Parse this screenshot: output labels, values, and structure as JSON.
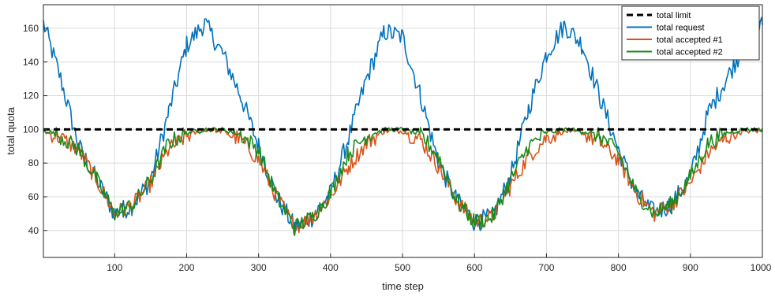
{
  "chart_data": {
    "type": "line",
    "xlabel": "time step",
    "ylabel": "total quota",
    "xlim": [
      1,
      1000
    ],
    "ylim": [
      24,
      174
    ],
    "x_ticks": [
      100,
      200,
      300,
      400,
      500,
      600,
      700,
      800,
      900,
      1000
    ],
    "y_ticks": [
      40,
      60,
      80,
      100,
      120,
      140,
      160
    ],
    "grid": true,
    "legend_position": "top-right",
    "colors": {
      "limit": "#000000",
      "request": "#0072BD",
      "accepted1": "#D95319",
      "accepted2": "#1A8A1A"
    },
    "x": [
      1,
      25,
      50,
      75,
      100,
      125,
      150,
      175,
      200,
      225,
      250,
      275,
      300,
      325,
      350,
      375,
      400,
      425,
      450,
      475,
      500,
      525,
      550,
      575,
      600,
      625,
      650,
      675,
      700,
      725,
      750,
      775,
      800,
      825,
      850,
      875,
      900,
      925,
      950,
      975,
      1000
    ],
    "series": [
      {
        "name": "total limit",
        "style": "dashed",
        "values": [
          100,
          100,
          100,
          100,
          100,
          100,
          100,
          100,
          100,
          100,
          100,
          100,
          100,
          100,
          100,
          100,
          100,
          100,
          100,
          100,
          100,
          100,
          100,
          100,
          100,
          100,
          100,
          100,
          100,
          100,
          100,
          100,
          100,
          100,
          100,
          100,
          100,
          100,
          100,
          100,
          100
        ]
      },
      {
        "name": "total request",
        "style": "solid",
        "values": [
          163,
          130,
          90,
          70,
          50,
          55,
          70,
          110,
          150,
          163,
          145,
          120,
          90,
          60,
          42,
          48,
          62,
          95,
          130,
          158,
          155,
          120,
          80,
          58,
          45,
          48,
          72,
          112,
          145,
          162,
          150,
          118,
          88,
          62,
          50,
          56,
          72,
          110,
          130,
          150,
          162
        ]
      },
      {
        "name": "total accepted #1",
        "style": "solid",
        "values": [
          99,
          95,
          88,
          70,
          50,
          55,
          68,
          88,
          96,
          100,
          99,
          94,
          82,
          60,
          42,
          48,
          60,
          78,
          92,
          99,
          99,
          94,
          78,
          58,
          45,
          48,
          66,
          84,
          95,
          99,
          98,
          92,
          82,
          62,
          50,
          56,
          68,
          86,
          95,
          99,
          99
        ]
      },
      {
        "name": "total accepted #2",
        "style": "solid",
        "values": [
          100,
          96,
          88,
          70,
          50,
          55,
          70,
          92,
          98,
          100,
          100,
          97,
          88,
          60,
          42,
          48,
          62,
          86,
          96,
          100,
          100,
          97,
          84,
          58,
          45,
          48,
          70,
          90,
          98,
          100,
          99,
          96,
          86,
          62,
          50,
          56,
          72,
          92,
          98,
          100,
          100
        ]
      }
    ]
  }
}
